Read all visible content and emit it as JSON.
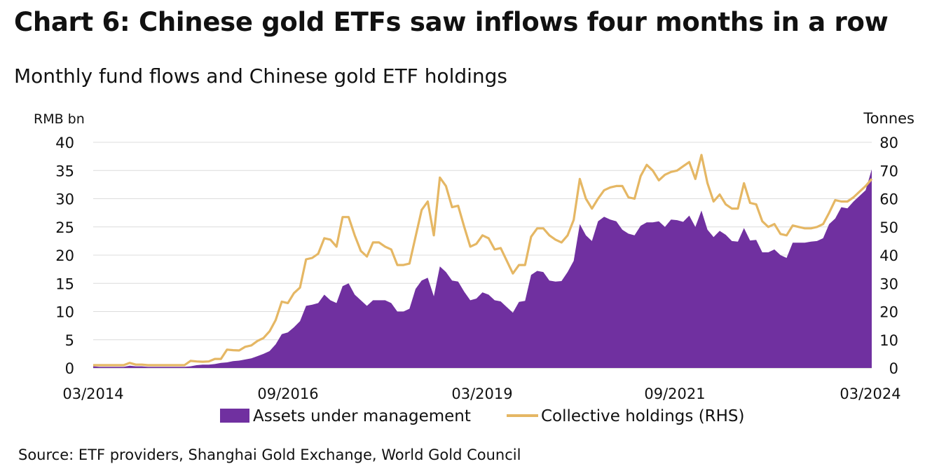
{
  "title": "Chart 6: Chinese gold ETFs saw inflows four months in a row",
  "subtitle": "Monthly fund flows and Chinese gold ETF holdings",
  "source": "Source: ETF providers, Shanghai Gold Exchange, World Gold Council",
  "chart_data": {
    "type": "area",
    "x_start": "03/2014",
    "x_end": "03/2024",
    "x_tick_labels": [
      "03/2014",
      "09/2016",
      "03/2019",
      "09/2021",
      "03/2024"
    ],
    "y_left_label": "RMB bn",
    "y_left_range": [
      0,
      40
    ],
    "y_left_ticks": [
      0,
      5,
      10,
      15,
      20,
      25,
      30,
      35,
      40
    ],
    "y_right_label": "Tonnes",
    "y_right_range": [
      0,
      80
    ],
    "y_right_ticks": [
      0,
      10,
      20,
      30,
      40,
      50,
      60,
      70,
      80
    ],
    "grid": true,
    "legend_position": "bottom",
    "series": [
      {
        "name": "Assets under management",
        "kind": "area",
        "axis": "left",
        "color": "#7030a0",
        "values": [
          0.3,
          0.2,
          0.2,
          0.2,
          0.2,
          0.2,
          0.4,
          0.3,
          0.3,
          0.2,
          0.2,
          0.2,
          0.2,
          0.2,
          0.2,
          0.2,
          0.3,
          0.5,
          0.6,
          0.6,
          0.7,
          0.9,
          1.0,
          1.2,
          1.3,
          1.5,
          1.7,
          2.1,
          2.5,
          3.0,
          4.2,
          6.0,
          6.3,
          7.2,
          8.3,
          11.0,
          11.2,
          11.5,
          13.0,
          12.0,
          11.5,
          14.5,
          15.0,
          13.0,
          12.0,
          11.0,
          12.0,
          12.0,
          12.0,
          11.5,
          10.0,
          10.0,
          10.5,
          14.0,
          15.5,
          16.0,
          12.7,
          18.0,
          17.0,
          15.5,
          15.3,
          13.5,
          12.0,
          12.3,
          13.4,
          13.0,
          12.0,
          11.8,
          10.8,
          9.8,
          11.7,
          11.9,
          16.5,
          17.2,
          17.0,
          15.5,
          15.3,
          15.4,
          17.0,
          19.0,
          25.5,
          23.5,
          22.5,
          26.0,
          26.8,
          26.3,
          26.0,
          24.5,
          23.8,
          23.5,
          25.2,
          25.8,
          25.8,
          26.0,
          25.0,
          26.3,
          26.2,
          25.9,
          27.0,
          25.0,
          27.9,
          24.5,
          23.2,
          24.3,
          23.6,
          22.5,
          22.4,
          24.8,
          22.6,
          22.7,
          20.5,
          20.5,
          21.0,
          20.0,
          19.5,
          22.2,
          22.2,
          22.2,
          22.4,
          22.5,
          23.0,
          25.5,
          26.5,
          28.5,
          28.3,
          29.5,
          30.5,
          31.5,
          35.2
        ]
      },
      {
        "name": "Collective holdings (RHS)",
        "kind": "line",
        "axis": "right",
        "color": "#e5b764",
        "values": [
          1.0,
          1.0,
          1.0,
          1.0,
          1.0,
          1.0,
          1.8,
          1.2,
          1.2,
          1.0,
          1.0,
          1.0,
          1.0,
          1.0,
          1.0,
          1.0,
          2.5,
          2.3,
          2.2,
          2.3,
          3.2,
          3.2,
          6.5,
          6.3,
          6.2,
          7.5,
          8.0,
          9.6,
          10.6,
          13.0,
          17.0,
          23.5,
          23.0,
          26.5,
          28.5,
          38.5,
          39.0,
          40.5,
          46.0,
          45.5,
          43.0,
          53.5,
          53.5,
          47.0,
          41.5,
          39.5,
          44.5,
          44.5,
          43.0,
          42.0,
          36.5,
          36.5,
          37.0,
          46.5,
          56.0,
          59.0,
          47.0,
          67.5,
          64.5,
          57.0,
          57.5,
          50.0,
          43.0,
          44.0,
          47.0,
          46.0,
          42.0,
          42.5,
          38.0,
          33.5,
          36.5,
          36.5,
          46.5,
          49.5,
          49.5,
          47.0,
          45.5,
          44.5,
          47.0,
          52.5,
          67.0,
          60.0,
          56.5,
          60.0,
          63.0,
          64.0,
          64.5,
          64.5,
          60.5,
          60.0,
          68.0,
          72.0,
          70.0,
          66.5,
          68.5,
          69.5,
          70.0,
          71.5,
          73.0,
          67.0,
          75.5,
          65.5,
          59.0,
          61.5,
          58.0,
          56.5,
          56.5,
          65.5,
          58.5,
          58.0,
          52.0,
          50.0,
          51.0,
          47.5,
          47.0,
          50.5,
          50.0,
          49.5,
          49.5,
          50.0,
          51.0,
          55.0,
          59.5,
          59.0,
          59.0,
          60.5,
          62.5,
          64.5,
          67.0
        ]
      }
    ]
  }
}
